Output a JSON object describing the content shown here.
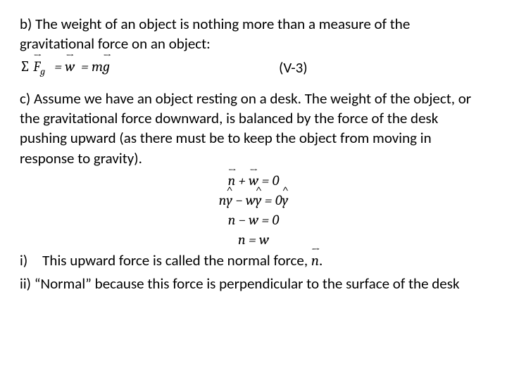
{
  "para_b": "b) The weight of an object is nothing more than a measure of the gravitational force on an object:",
  "eq1": {
    "label": "(V-3)"
  },
  "para_c": "c) Assume we have an object resting on a desk. The weight of the object, or the gravitational force downward, is balanced by the force of the desk pushing upward (as there must be to keep the object from moving in response to gravity).",
  "item_i_pre": "i) This upward force is called the normal force, ",
  "item_i_post": ".",
  "item_ii": "ii) “Normal” because this force is perpendicular to the surface of the desk",
  "math": {
    "F": "F",
    "g": "g",
    "w": "w",
    "m": "m",
    "n": "n",
    "y": "y",
    "eq": "=",
    "plus": "+",
    "minus": "−",
    "zero": "0",
    "sigma": "∑"
  }
}
